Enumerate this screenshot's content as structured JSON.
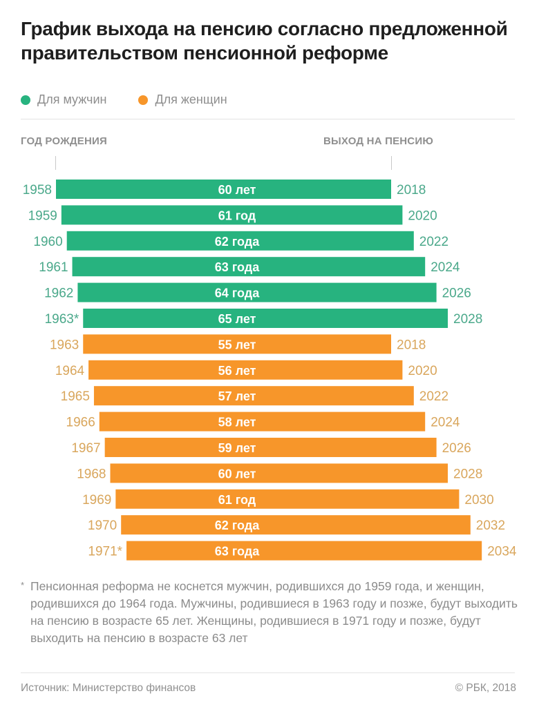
{
  "title": "График выхода на пенсию согласно предложенной правительством пенсионной реформе",
  "legend": [
    {
      "label": "Для мужчин",
      "color": "#27b37f"
    },
    {
      "label": "Для женщин",
      "color": "#f7962a"
    }
  ],
  "headers": {
    "left": "ГОД РОЖДЕНИЯ",
    "right": "ВЫХОД НА ПЕНСИЮ"
  },
  "colors": {
    "men_bar": "#27b37f",
    "men_label": "#4aa88a",
    "women_bar": "#f7962a",
    "women_label": "#d9a65c",
    "bar_text": "#ffffff"
  },
  "chart_data": {
    "type": "bar",
    "title": "График выхода на пенсию согласно предложенной правительством пенсионной реформе",
    "xlabel": "ГОД РОЖДЕНИЯ → ВЫХОД НА ПЕНСИЮ",
    "ylabel": "",
    "legend_position": "top-left",
    "grid": false,
    "series": [
      {
        "name": "Для мужчин",
        "rows": [
          {
            "birth_label": "1958",
            "birth_year": 1958,
            "age": 60,
            "age_label": "60 лет",
            "retire_year": 2018
          },
          {
            "birth_label": "1959",
            "birth_year": 1959,
            "age": 61,
            "age_label": "61 год",
            "retire_year": 2020
          },
          {
            "birth_label": "1960",
            "birth_year": 1960,
            "age": 62,
            "age_label": "62 года",
            "retire_year": 2022
          },
          {
            "birth_label": "1961",
            "birth_year": 1961,
            "age": 63,
            "age_label": "63 года",
            "retire_year": 2024
          },
          {
            "birth_label": "1962",
            "birth_year": 1962,
            "age": 64,
            "age_label": "64 года",
            "retire_year": 2026
          },
          {
            "birth_label": "1963*",
            "birth_year": 1963,
            "age": 65,
            "age_label": "65 лет",
            "retire_year": 2028
          }
        ]
      },
      {
        "name": "Для женщин",
        "rows": [
          {
            "birth_label": "1963",
            "birth_year": 1963,
            "age": 55,
            "age_label": "55 лет",
            "retire_year": 2018
          },
          {
            "birth_label": "1964",
            "birth_year": 1964,
            "age": 56,
            "age_label": "56 лет",
            "retire_year": 2020
          },
          {
            "birth_label": "1965",
            "birth_year": 1965,
            "age": 57,
            "age_label": "57 лет",
            "retire_year": 2022
          },
          {
            "birth_label": "1966",
            "birth_year": 1966,
            "age": 58,
            "age_label": "58 лет",
            "retire_year": 2024
          },
          {
            "birth_label": "1967",
            "birth_year": 1967,
            "age": 59,
            "age_label": "59 лет",
            "retire_year": 2026
          },
          {
            "birth_label": "1968",
            "birth_year": 1968,
            "age": 60,
            "age_label": "60 лет",
            "retire_year": 2028
          },
          {
            "birth_label": "1969",
            "birth_year": 1969,
            "age": 61,
            "age_label": "61 год",
            "retire_year": 2030
          },
          {
            "birth_label": "1970",
            "birth_year": 1970,
            "age": 62,
            "age_label": "62 года",
            "retire_year": 2032
          },
          {
            "birth_label": "1971*",
            "birth_year": 1971,
            "age": 63,
            "age_label": "63 года",
            "retire_year": 2034
          }
        ]
      }
    ]
  },
  "footnote": {
    "marker": "*",
    "text": "Пенсионная реформа не коснется мужчин, родившихся до 1959 года, и женщин, родившихся до 1964 года. Мужчины, родившиеся в 1963 году и позже, будут выходить на пенсию в возрасте 65 лет. Женщины, родившиеся в 1971 году и позже, будут выходить на пенсию в возрасте 63 лет"
  },
  "source": "Источник: Министерство финансов",
  "copyright": "© РБК, 2018"
}
